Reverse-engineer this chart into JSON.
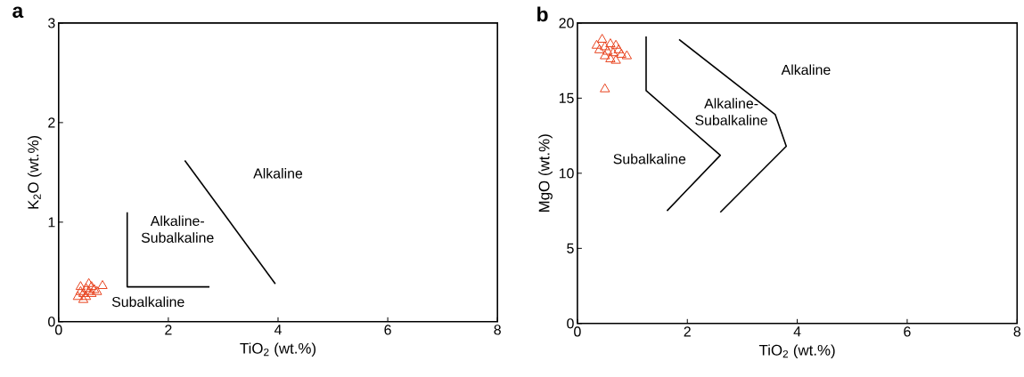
{
  "chart_data": [
    {
      "type": "scatter",
      "title": "a",
      "xlabel": "TiO$_{2}$ (wt.%)",
      "ylabel": "K$_{2}$O (wt.%)",
      "xlim": [
        0,
        8
      ],
      "ylim": [
        0,
        3
      ],
      "xticks": [
        0,
        2,
        4,
        6,
        8
      ],
      "yticks": [
        0,
        1,
        2,
        3
      ],
      "grid": false,
      "series": [
        {
          "marker": "triangle",
          "color": "#e8431f",
          "x": [
            0.35,
            0.4,
            0.45,
            0.5,
            0.55,
            0.6,
            0.65,
            0.5,
            0.45,
            0.6,
            0.7,
            0.8,
            0.55,
            0.4
          ],
          "values": [
            0.25,
            0.3,
            0.28,
            0.33,
            0.38,
            0.35,
            0.32,
            0.25,
            0.22,
            0.28,
            0.3,
            0.36,
            0.3,
            0.35
          ]
        },
        {
          "type": "line",
          "marker": "none",
          "color": "#000000",
          "x": [
            1.25,
            1.25,
            2.75
          ],
          "values": [
            1.1,
            0.35,
            0.35
          ]
        },
        {
          "type": "line",
          "marker": "none",
          "color": "#000000",
          "x": [
            2.3,
            3.95
          ],
          "values": [
            1.62,
            0.38
          ]
        }
      ],
      "annotations": [
        "Alkaline",
        "Alkaline-Subalkaline",
        "Subalkaline"
      ]
    },
    {
      "type": "scatter",
      "title": "b",
      "xlabel": "TiO$_{2}$ (wt.%)",
      "ylabel": "MgO (wt.%)",
      "xlim": [
        0,
        8
      ],
      "ylim": [
        0,
        20
      ],
      "xticks": [
        0,
        2,
        4,
        6,
        8
      ],
      "yticks": [
        0,
        5,
        10,
        15,
        20
      ],
      "grid": false,
      "series": [
        {
          "marker": "triangle",
          "color": "#e8431f",
          "x": [
            0.45,
            0.35,
            0.5,
            0.6,
            0.7,
            0.55,
            0.4,
            0.65,
            0.75,
            0.8,
            0.9,
            0.6,
            0.7,
            0.5,
            0.5
          ],
          "values": [
            18.9,
            18.5,
            18.4,
            18.6,
            18.5,
            18.1,
            18.2,
            18.0,
            18.2,
            17.9,
            17.8,
            17.6,
            17.5,
            17.8,
            15.6
          ]
        },
        {
          "type": "line",
          "marker": "none",
          "color": "#000000",
          "x": [
            1.25,
            1.25,
            2.6,
            1.63
          ],
          "values": [
            19.1,
            15.5,
            11.2,
            7.5
          ]
        },
        {
          "type": "line",
          "marker": "none",
          "color": "#000000",
          "x": [
            1.85,
            3.6,
            3.8,
            2.6
          ],
          "values": [
            18.9,
            13.9,
            11.8,
            7.4
          ]
        }
      ],
      "annotations": [
        "Alkaline",
        "Alkaline-Subalkaline",
        "Subalkaline"
      ]
    }
  ]
}
